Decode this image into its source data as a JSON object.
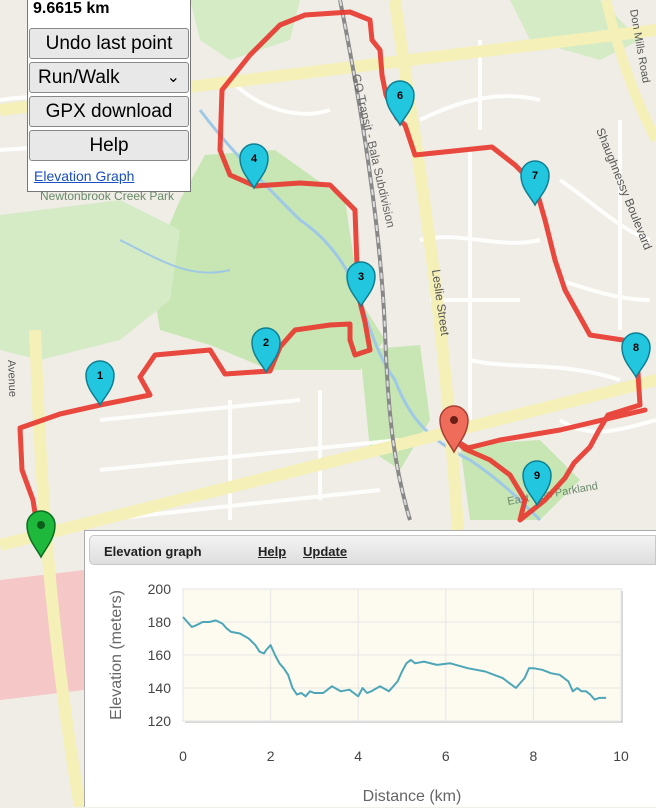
{
  "distance": "9.6615 km",
  "controls": {
    "undo_label": "Undo last point",
    "activity_select": "Run/Walk",
    "gpx_label": "GPX download",
    "help_label": "Help",
    "elevation_link": "Elevation Graph"
  },
  "map": {
    "street_labels": [
      "GO Transit - Bala Subdivision",
      "Leslie Street",
      "Shaughnessy Boulevard",
      "Newtonbrook Creek Park",
      "Don Mills Road",
      "Avenue",
      "East Don Parkland"
    ],
    "markers": [
      "1",
      "2",
      "3",
      "4",
      "6",
      "7",
      "8",
      "9"
    ],
    "colors": {
      "route": "#e8352c",
      "marker": "#22c7df",
      "start": "#1eb83c",
      "end": "#ef6b5a"
    }
  },
  "panel": {
    "title": "Elevation graph",
    "help_link": "Help",
    "update_link": "Update"
  },
  "chart_data": {
    "type": "line",
    "xlabel": "Distance (km)",
    "ylabel": "Elevation (meters)",
    "xlim": [
      0,
      10
    ],
    "ylim": [
      120,
      200
    ],
    "xticks": [
      0,
      2,
      4,
      6,
      8,
      10
    ],
    "yticks": [
      120,
      140,
      160,
      180,
      200
    ],
    "grid": true,
    "series": [
      {
        "color": "#4da6b8",
        "x": [
          0,
          0.1,
          0.2,
          0.3,
          0.45,
          0.6,
          0.75,
          0.9,
          1.0,
          1.1,
          1.3,
          1.5,
          1.65,
          1.75,
          1.85,
          1.9,
          2.0,
          2.1,
          2.2,
          2.3,
          2.4,
          2.5,
          2.6,
          2.7,
          2.8,
          2.9,
          3.0,
          3.2,
          3.4,
          3.6,
          3.8,
          3.9,
          4.0,
          4.1,
          4.2,
          4.3,
          4.5,
          4.7,
          4.9,
          5.0,
          5.1,
          5.2,
          5.3,
          5.5,
          5.8,
          6.1,
          6.5,
          6.9,
          7.1,
          7.3,
          7.5,
          7.6,
          7.8,
          7.9,
          8.0,
          8.2,
          8.4,
          8.6,
          8.8,
          8.9,
          9.0,
          9.1,
          9.2,
          9.3,
          9.4,
          9.5,
          9.66
        ],
        "y": [
          183,
          180,
          177,
          178,
          180,
          180,
          181,
          179,
          176,
          174,
          173,
          170,
          166,
          162,
          161,
          163,
          166,
          160,
          155,
          152,
          148,
          140,
          136,
          137,
          135,
          138,
          137,
          137,
          141,
          138,
          139,
          137,
          135,
          140,
          137,
          138,
          141,
          138,
          144,
          150,
          155,
          157,
          155,
          156,
          154,
          155,
          152,
          150,
          148,
          146,
          142,
          140,
          146,
          152,
          152,
          151,
          149,
          148,
          144,
          138,
          140,
          138,
          138,
          136,
          133,
          134,
          134
        ]
      }
    ]
  }
}
